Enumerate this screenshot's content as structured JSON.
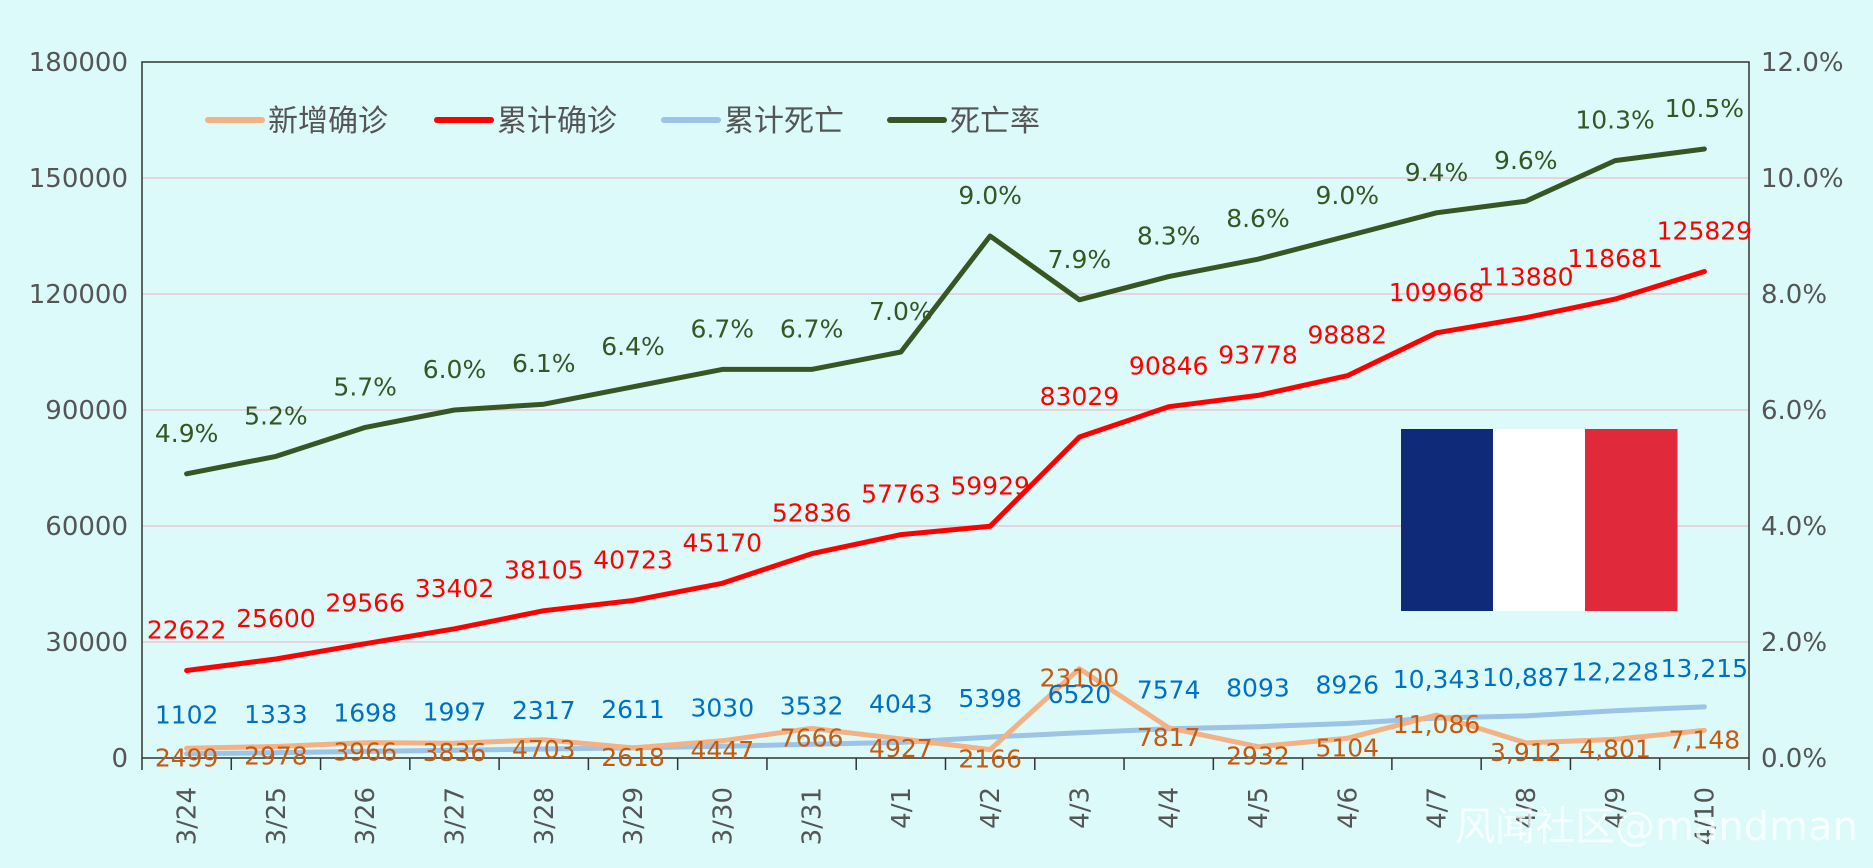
{
  "chart_data": {
    "type": "line",
    "x": [
      "3/24",
      "3/25",
      "3/26",
      "3/27",
      "3/28",
      "3/29",
      "3/30",
      "3/31",
      "4/1",
      "4/2",
      "4/3",
      "4/4",
      "4/5",
      "4/6",
      "4/7",
      "4/8",
      "4/9",
      "4/10"
    ],
    "y_left_ticks": [
      "0",
      "30000",
      "60000",
      "90000",
      "120000",
      "150000",
      "180000"
    ],
    "y_right_ticks": [
      "0.0%",
      "2.0%",
      "4.0%",
      "6.0%",
      "8.0%",
      "10.0%",
      "12.0%"
    ],
    "ylim_left": [
      0,
      180000
    ],
    "ylim_right": [
      0,
      0.12
    ],
    "grid": "horizontal",
    "legend_position": "top-left",
    "series": [
      {
        "key": "new",
        "name": "新增确诊",
        "axis": "left",
        "color": "#f4b183",
        "label_color": "#c55a11",
        "values": [
          2499,
          2978,
          3966,
          3836,
          4703,
          2618,
          4447,
          7666,
          4927,
          2166,
          23100,
          7817,
          2932,
          5104,
          11086,
          3912,
          4801,
          7148
        ],
        "labels": [
          "2499",
          "2978",
          "3966",
          "3836",
          "4703",
          "2618",
          "4447",
          "7666",
          "4927",
          "2166",
          "23100",
          "7817",
          "2932",
          "5104",
          "11,086",
          "3,912",
          "4,801",
          "7,148"
        ]
      },
      {
        "key": "cases",
        "name": "累计确诊",
        "axis": "left",
        "color": "#ff0000",
        "label_color": "#ff0000",
        "values": [
          22622,
          25600,
          29566,
          33402,
          38105,
          40723,
          45170,
          52836,
          57763,
          59929,
          83029,
          90846,
          93778,
          98882,
          109968,
          113880,
          118681,
          125829
        ],
        "labels": [
          "22622",
          "25600",
          "29566",
          "33402",
          "38105",
          "40723",
          "45170",
          "52836",
          "57763",
          "59929",
          "83029",
          "90846",
          "93778",
          "98882",
          "109968",
          "113880",
          "118681",
          "125829"
        ]
      },
      {
        "key": "deaths",
        "name": "累计死亡",
        "axis": "left",
        "color": "#9dc3e6",
        "label_color": "#0070c0",
        "values": [
          1102,
          1333,
          1698,
          1997,
          2317,
          2611,
          3030,
          3532,
          4043,
          5398,
          6520,
          7574,
          8093,
          8926,
          10343,
          10887,
          12228,
          13215
        ],
        "labels": [
          "1102",
          "1333",
          "1698",
          "1997",
          "2317",
          "2611",
          "3030",
          "3532",
          "4043",
          "5398",
          "6520",
          "7574",
          "8093",
          "8926",
          "10,343",
          "10,887",
          "12,228",
          "13,215"
        ]
      },
      {
        "key": "rate",
        "name": "死亡率",
        "axis": "right",
        "color": "#375623",
        "label_color": "#375623",
        "values": [
          0.049,
          0.052,
          0.057,
          0.06,
          0.061,
          0.064,
          0.067,
          0.067,
          0.07,
          0.09,
          0.079,
          0.083,
          0.086,
          0.09,
          0.094,
          0.096,
          0.103,
          0.105
        ],
        "labels": [
          "4.9%",
          "5.2%",
          "5.7%",
          "6.0%",
          "6.1%",
          "6.4%",
          "6.7%",
          "6.7%",
          "7.0%",
          "9.0%",
          "7.9%",
          "8.3%",
          "8.6%",
          "9.0%",
          "9.4%",
          "9.6%",
          "10.3%",
          "10.5%"
        ]
      }
    ],
    "flag_colors": [
      "#0f2a78",
      "#ffffff",
      "#e02a3b"
    ],
    "watermark": "风闻社区@mandman"
  }
}
